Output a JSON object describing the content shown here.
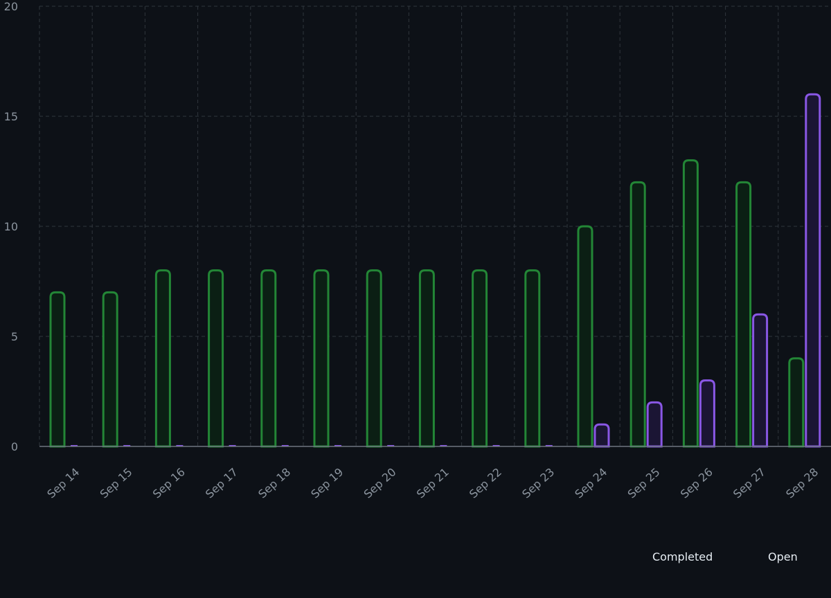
{
  "chart_data": {
    "type": "bar",
    "categories": [
      "Sep 14",
      "Sep 15",
      "Sep 16",
      "Sep 17",
      "Sep 18",
      "Sep 19",
      "Sep 20",
      "Sep 21",
      "Sep 22",
      "Sep 23",
      "Sep 24",
      "Sep 25",
      "Sep 26",
      "Sep 27",
      "Sep 28"
    ],
    "series": [
      {
        "name": "Completed",
        "values": [
          7,
          7,
          8,
          8,
          8,
          8,
          8,
          8,
          8,
          8,
          10,
          12,
          13,
          12,
          4
        ],
        "stroke": "#238636",
        "fill": "#0b1f14"
      },
      {
        "name": "Open",
        "values": [
          0,
          0,
          0,
          0,
          0,
          0,
          0,
          0,
          0,
          0,
          1,
          2,
          3,
          6,
          16
        ],
        "stroke": "#8957e5",
        "fill": "#1b1534"
      }
    ],
    "ylim": [
      0,
      20
    ],
    "yticks": [
      0,
      5,
      10,
      15,
      20
    ],
    "grid": true,
    "legend_position": "bottom-right",
    "colors": {
      "background": "#0d1117",
      "grid": "#30363d",
      "axis": "#6e7681",
      "tick_text": "#8b949e",
      "legend_text": "#e6edf3"
    }
  }
}
